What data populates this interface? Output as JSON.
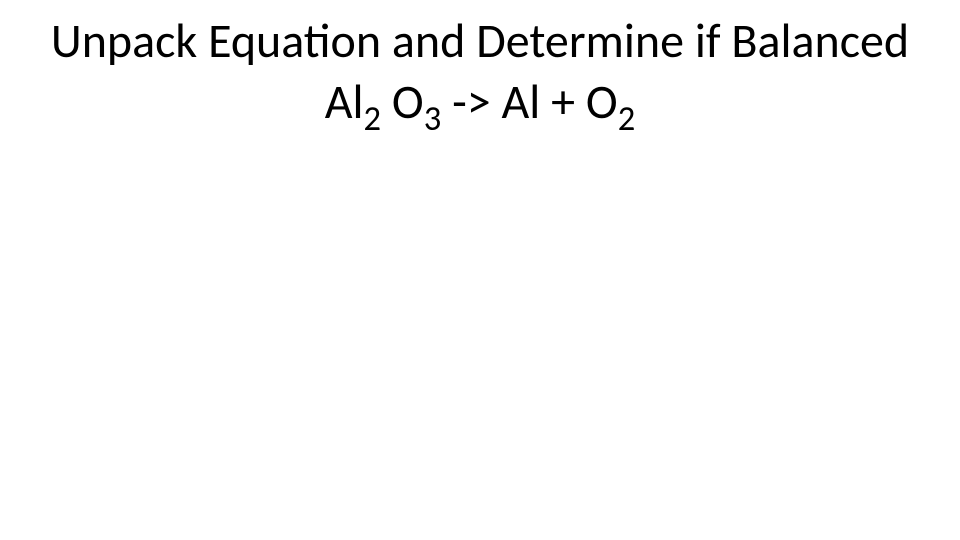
{
  "slide": {
    "background_color": "#ffffff",
    "title": {
      "line1": "Unpack Equation and Determine if Balanced",
      "fontsize_pt": 36,
      "color": "#000000",
      "font_family": "Calibri",
      "font_weight": 400
    },
    "equation": {
      "fontsize_pt": 36,
      "color": "#000000",
      "parts": {
        "al1": "Al",
        "sub2a": "2",
        "space1": " ",
        "o1": "O",
        "sub3": "3",
        "arrow": "  -> ",
        "al2": "Al + O",
        "sub2b": "2"
      }
    }
  }
}
